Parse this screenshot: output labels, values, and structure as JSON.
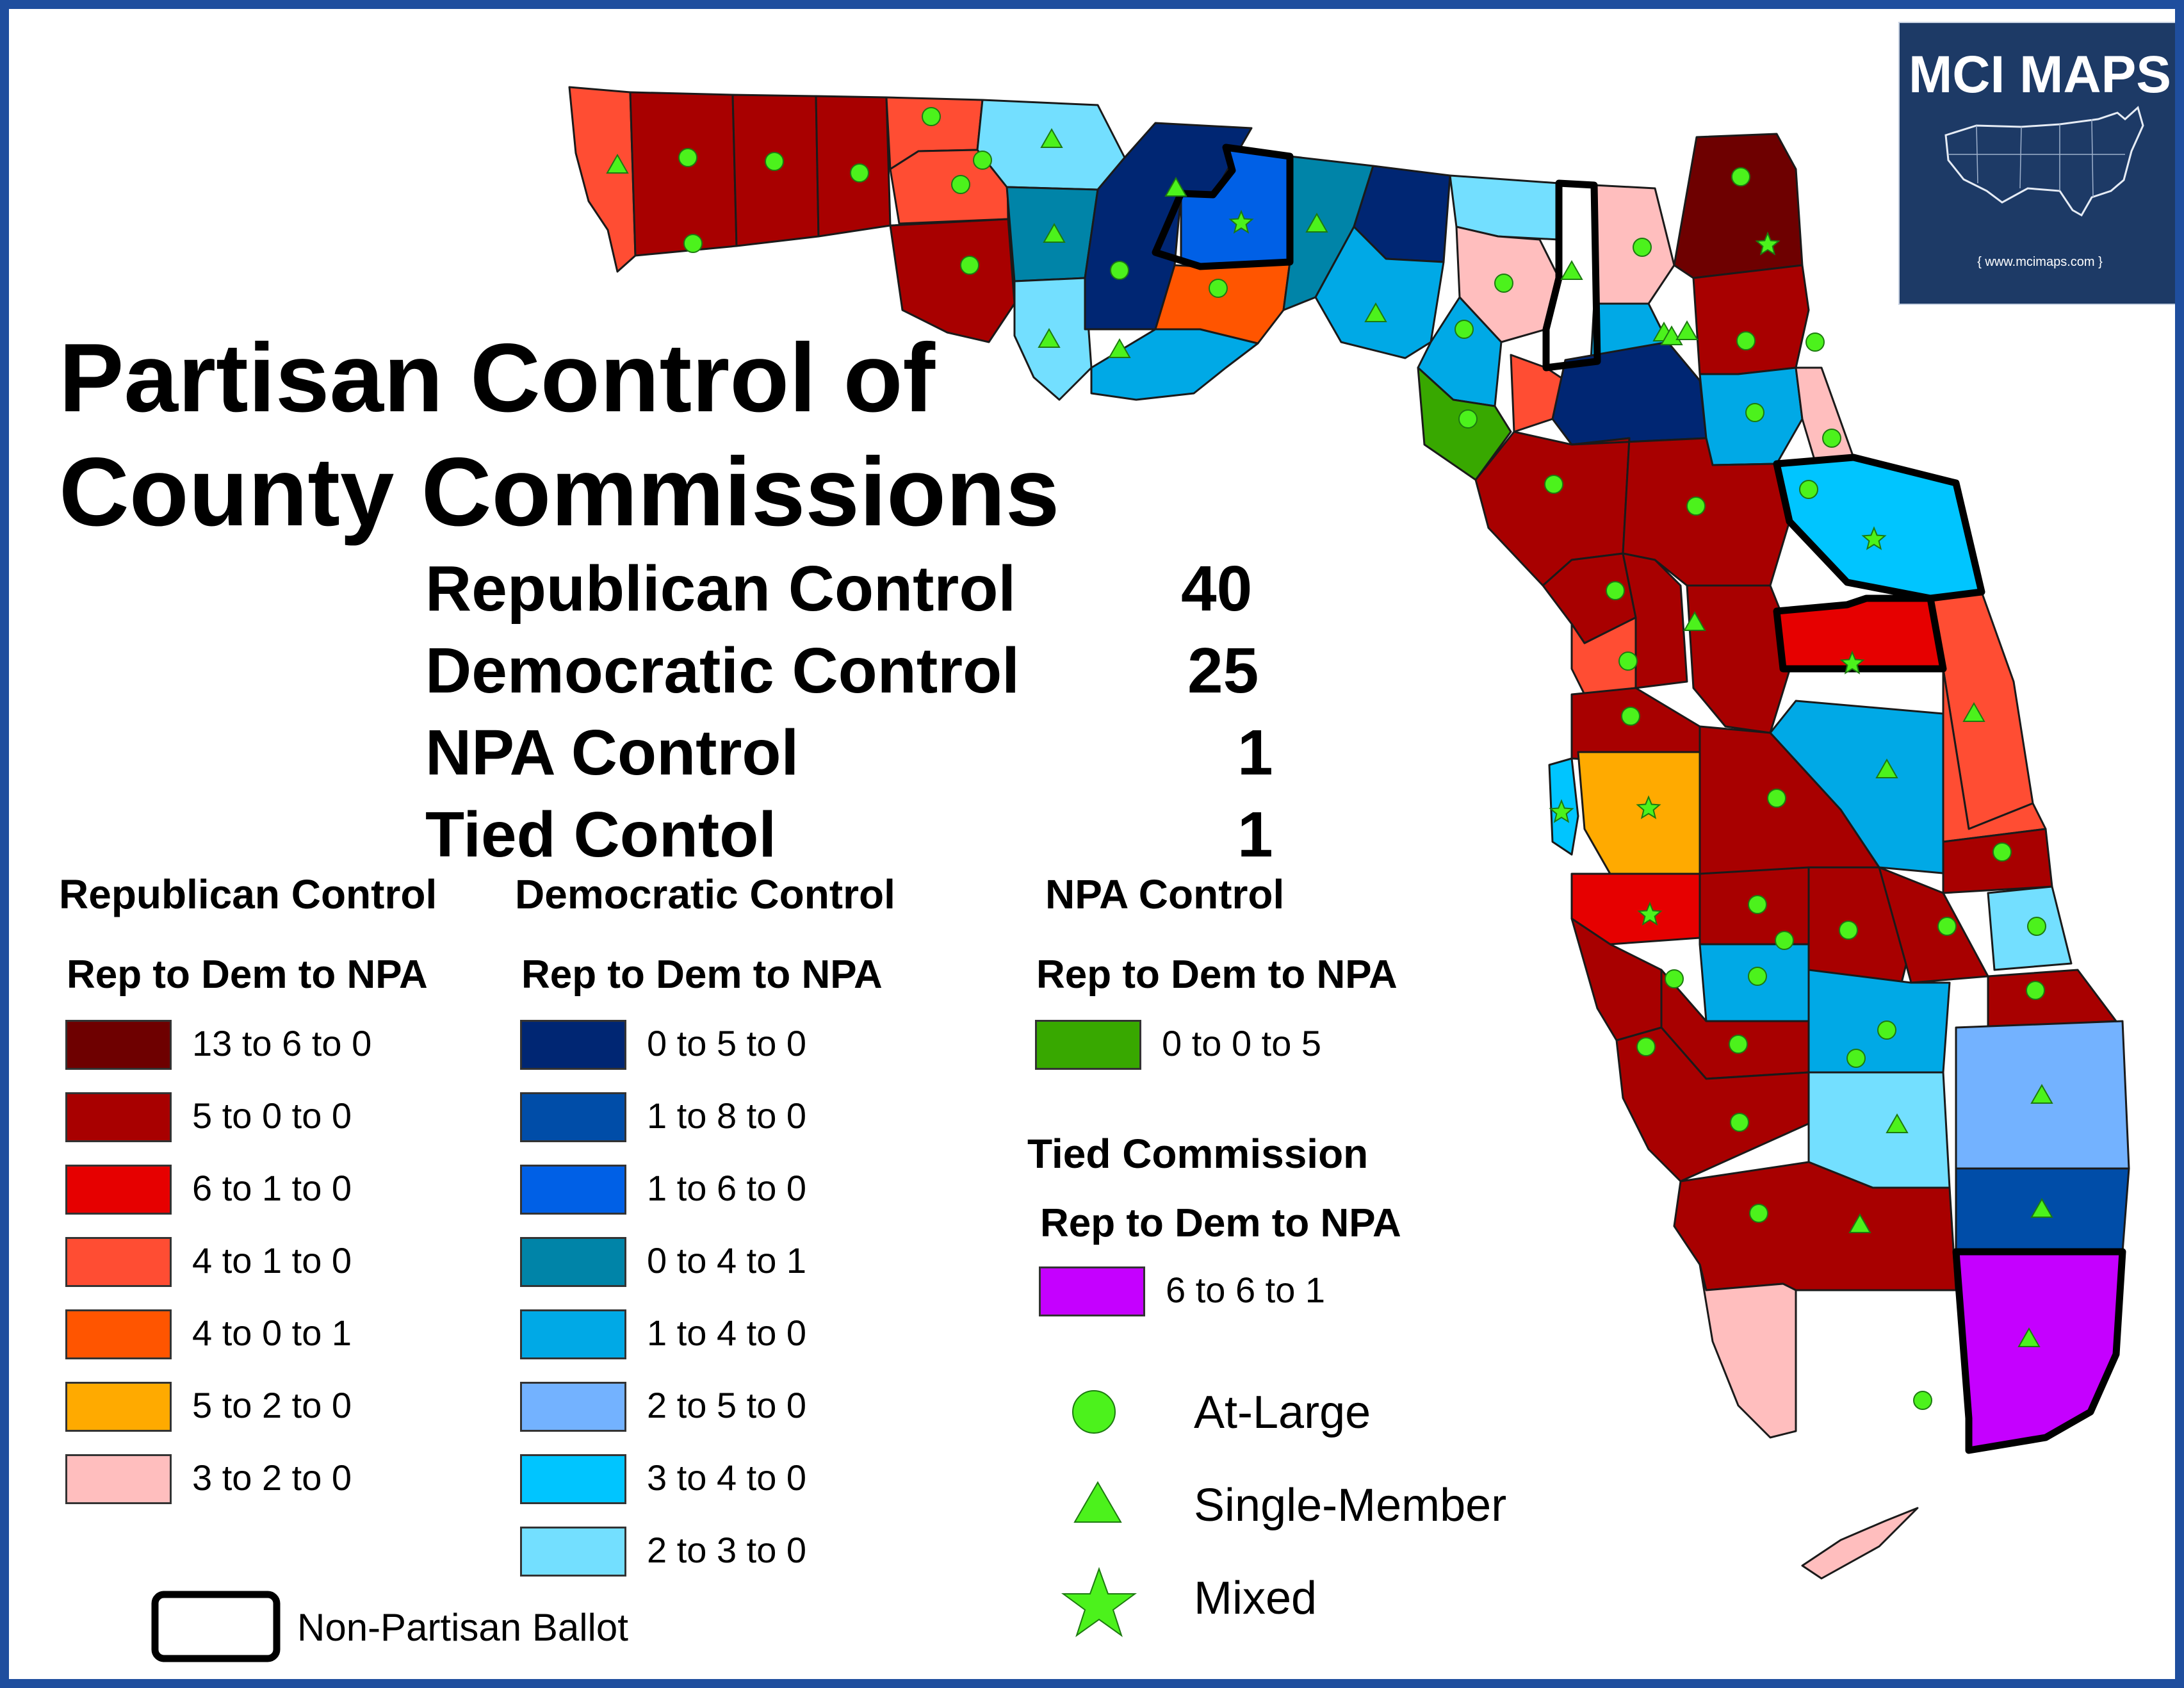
{
  "title_line1": "Partisan Control of",
  "title_line2": "County Commissions",
  "summary": [
    {
      "label": "Republican Control",
      "count": "40"
    },
    {
      "label": "Democratic Control",
      "count": "25"
    },
    {
      "label": "NPA Control",
      "count": "1"
    },
    {
      "label": "Tied Contol",
      "count": "1"
    }
  ],
  "legend": {
    "republican": {
      "heading": "Republican Control",
      "subheading": "Rep to Dem to NPA",
      "items": [
        {
          "label": "13 to 6 to 0",
          "color": "#6e0000"
        },
        {
          "label": "5 to 0 to 0",
          "color": "#a80000"
        },
        {
          "label": "6 to 1 to 0",
          "color": "#e60000"
        },
        {
          "label": "4 to 1 to 0",
          "color": "#ff4d33"
        },
        {
          "label": "4 to 0 to 1",
          "color": "#ff5500"
        },
        {
          "label": "5 to 2 to 0",
          "color": "#ffaa00"
        },
        {
          "label": "3 to 2 to 0",
          "color": "#ffbebe"
        }
      ]
    },
    "democratic": {
      "heading": "Democratic Control",
      "subheading": "Rep to Dem to NPA",
      "items": [
        {
          "label": "0 to 5 to 0",
          "color": "#002673"
        },
        {
          "label": "1 to 8 to 0",
          "color": "#004da8"
        },
        {
          "label": "1 to 6 to 0",
          "color": "#0060e6"
        },
        {
          "label": "0 to 4 to 1",
          "color": "#0084a8"
        },
        {
          "label": "1 to 4 to 0",
          "color": "#00a9e6"
        },
        {
          "label": "2 to 5 to 0",
          "color": "#73b2ff"
        },
        {
          "label": "3 to 4 to 0",
          "color": "#00c5ff"
        },
        {
          "label": "2 to 3 to 0",
          "color": "#73dfff"
        }
      ]
    },
    "npa": {
      "heading": "NPA Control",
      "subheading": "Rep to Dem to NPA",
      "items": [
        {
          "label": "0 to 0 to 5",
          "color": "#38a800"
        }
      ]
    },
    "tied": {
      "heading": "Tied Commission",
      "subheading": "Rep to Dem to NPA",
      "items": [
        {
          "label": "6 to 6 to 1",
          "color": "#c500ff"
        }
      ]
    },
    "symbols": [
      {
        "label": "At-Large",
        "icon": "circle-icon"
      },
      {
        "label": "Single-Member",
        "icon": "triangle-icon"
      },
      {
        "label": "Mixed",
        "icon": "star-icon"
      }
    ],
    "nonpartisan_label": "Non-Partisan Ballot"
  },
  "logo": {
    "title": "MCI MAPS",
    "url": "{ www.mcimaps.com }"
  },
  "colors": {
    "frame": "#1f4e9e",
    "marker": "#4cf21c",
    "logo_bg": "#1d3a66"
  }
}
